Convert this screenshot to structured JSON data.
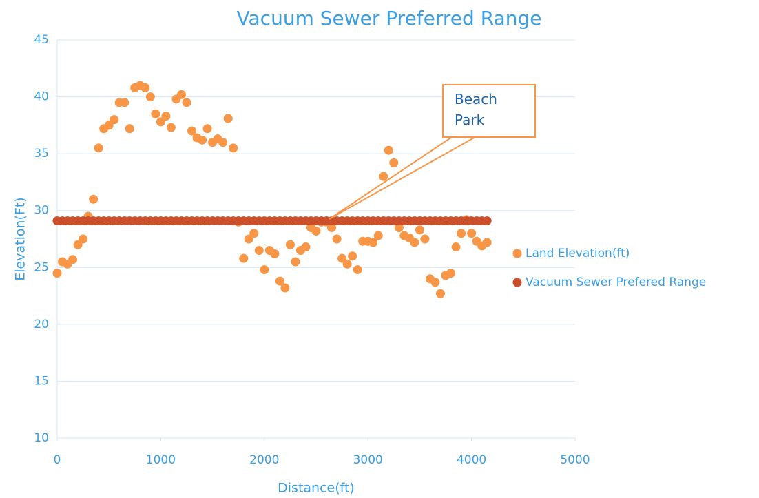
{
  "chart_data": {
    "type": "scatter",
    "title": "Vacuum Sewer Preferred Range",
    "x_label": "Distance(ft)",
    "y_label": "Elevation(Ft)",
    "x": [
      0,
      50,
      100,
      150,
      200,
      250,
      300,
      350,
      400,
      450,
      500,
      550,
      600,
      650,
      700,
      750,
      800,
      850,
      900,
      950,
      1000,
      1050,
      1100,
      1150,
      1200,
      1250,
      1300,
      1350,
      1400,
      1450,
      1500,
      1550,
      1600,
      1650,
      1700,
      1750,
      1800,
      1850,
      1900,
      1950,
      2000,
      2050,
      2100,
      2150,
      2200,
      2250,
      2300,
      2350,
      2400,
      2450,
      2500,
      2550,
      2600,
      2650,
      2700,
      2750,
      2800,
      2850,
      2900,
      2950,
      3000,
      3050,
      3100,
      3150,
      3200,
      3250,
      3300,
      3350,
      3400,
      3450,
      3500,
      3550,
      3600,
      3650,
      3700,
      3750,
      3800,
      3850,
      3900,
      3950,
      4000,
      4050,
      4100,
      4150
    ],
    "series": [
      {
        "name": "Land Elevation(ft)",
        "color": "#f79646",
        "values": [
          24.5,
          25.5,
          25.3,
          25.7,
          27,
          27.5,
          29.5,
          31,
          35.5,
          37.2,
          37.5,
          38,
          39.5,
          39.5,
          37.2,
          40.8,
          41,
          40.8,
          40,
          38.5,
          37.8,
          38.3,
          37.3,
          39.8,
          40.2,
          39.5,
          37,
          36.4,
          36.2,
          37.2,
          36,
          36.3,
          36,
          38.1,
          35.5,
          29,
          25.8,
          27.5,
          28,
          26.5,
          24.8,
          26.5,
          26.2,
          23.8,
          23.2,
          27,
          25.5,
          26.5,
          26.8,
          28.5,
          28.2,
          29,
          29,
          28.5,
          27.5,
          25.8,
          25.3,
          26,
          24.8,
          27.3,
          27.3,
          27.2,
          27.8,
          33,
          35.3,
          34.2,
          28.5,
          27.8,
          27.6,
          27.2,
          28.3,
          27.5,
          24,
          23.7,
          22.7,
          24.3,
          24.5,
          26.8,
          28,
          29.2,
          28,
          27.3,
          26.9,
          27.2
        ]
      },
      {
        "name": "Vacuum Sewer Prefered Range",
        "color": "#c9502a",
        "values": [
          29.1,
          29.1,
          29.1,
          29.1,
          29.1,
          29.1,
          29.1,
          29.1,
          29.1,
          29.1,
          29.1,
          29.1,
          29.1,
          29.1,
          29.1,
          29.1,
          29.1,
          29.1,
          29.1,
          29.1,
          29.1,
          29.1,
          29.1,
          29.1,
          29.1,
          29.1,
          29.1,
          29.1,
          29.1,
          29.1,
          29.1,
          29.1,
          29.1,
          29.1,
          29.1,
          29.1,
          29.1,
          29.1,
          29.1,
          29.1,
          29.1,
          29.1,
          29.1,
          29.1,
          29.1,
          29.1,
          29.1,
          29.1,
          29.1,
          29.1,
          29.1,
          29.1,
          29.1,
          29.1,
          29.1,
          29.1,
          29.1,
          29.1,
          29.1,
          29.1,
          29.1,
          29.1,
          29.1,
          29.1,
          29.1,
          29.1,
          29.1,
          29.1,
          29.1,
          29.1,
          29.1,
          29.1,
          29.1,
          29.1,
          29.1,
          29.1,
          29.1,
          29.1,
          29.1,
          29.1,
          29.1,
          29.1,
          29.1,
          29.1
        ]
      }
    ],
    "annotations": [
      {
        "text": "Beach Park",
        "x": 2626,
        "y": 29.25
      }
    ],
    "xlim": [
      0,
      5000
    ],
    "xticks": [
      0,
      1000,
      2000,
      3000,
      4000,
      5000
    ],
    "ylim": [
      10,
      45
    ],
    "yticks": [
      10,
      15,
      20,
      25,
      30,
      35,
      40,
      45
    ],
    "grid": true,
    "legend": "right"
  }
}
